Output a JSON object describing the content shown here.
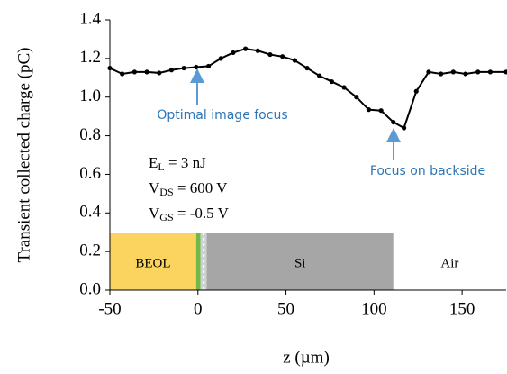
{
  "chart_data": {
    "type": "line",
    "x_label": "z (µm)",
    "y_label": "Transient collected charge (pC)",
    "x": [
      -50,
      -43,
      -36,
      -29,
      -22,
      -15,
      -8,
      -1,
      6,
      13,
      20,
      27,
      34,
      41,
      48,
      55,
      62,
      69,
      76,
      83,
      90,
      97,
      104,
      111,
      117,
      124,
      131,
      138,
      145,
      152,
      159,
      166,
      175
    ],
    "series": [
      {
        "name": "charge",
        "color": "#000000",
        "values": [
          1.15,
          1.12,
          1.13,
          1.13,
          1.125,
          1.14,
          1.15,
          1.155,
          1.16,
          1.2,
          1.23,
          1.25,
          1.24,
          1.22,
          1.21,
          1.19,
          1.15,
          1.11,
          1.08,
          1.05,
          1.0,
          0.935,
          0.93,
          0.87,
          0.84,
          1.03,
          1.13,
          1.12,
          1.13,
          1.12,
          1.13,
          1.13,
          1.13
        ]
      }
    ],
    "xlim": [
      -50,
      175
    ],
    "ylim": [
      0,
      1.4
    ],
    "xticks": [
      -50,
      0,
      50,
      100,
      150
    ],
    "yticks": [
      {
        "value": 0,
        "label": "0.0"
      },
      {
        "value": 0.2,
        "label": "0.2"
      },
      {
        "value": 0.4,
        "label": "0.4"
      },
      {
        "value": 0.6,
        "label": "0.6"
      },
      {
        "value": 0.8,
        "label": "0.8"
      },
      {
        "value": 1.0,
        "label": "1.0"
      },
      {
        "value": 1.2,
        "label": "1.2"
      },
      {
        "value": 1.4,
        "label": "1.4"
      }
    ],
    "annotations": [
      "Optimal image focus",
      "Focus on backside"
    ],
    "conditions": [
      {
        "main": "E",
        "sub": "L",
        "rest": " = 3 nJ"
      },
      {
        "main": "V",
        "sub": "DS",
        "rest": " = 600  V"
      },
      {
        "main": "V",
        "sub": "GS",
        "rest": " = -0.5  V"
      }
    ],
    "regions": [
      {
        "label": "BEOL",
        "start": -50,
        "end": -1,
        "color": "#fbd35f"
      },
      {
        "label": null,
        "start": -1,
        "end": 1.5,
        "color": "#70b84a"
      },
      {
        "label": null,
        "start": 1.5,
        "end": 5,
        "color": "#d0d0d0"
      },
      {
        "label": "Si",
        "start": 5,
        "end": 111,
        "color": "#a6a6a6"
      },
      {
        "label": "Air",
        "start": 111,
        "end": 175,
        "color": "#ffffff"
      }
    ]
  }
}
